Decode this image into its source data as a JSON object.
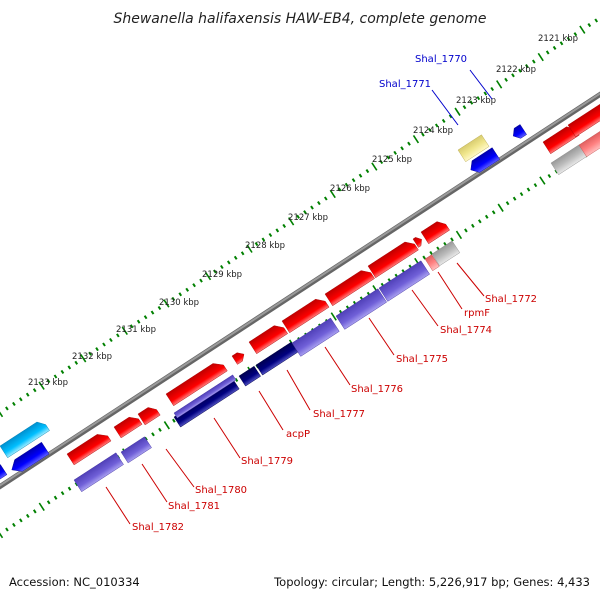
{
  "title": "Shewanella halifaxensis HAW-EB4, complete genome",
  "footer": {
    "accession": "Accession: NC_010334",
    "summary": "Topology: circular; Length: 5,226,917 bp; Genes: 4,433"
  },
  "colors": {
    "forward_gene": "#ff0000",
    "reverse_gene": "#6a5acd",
    "highlight_reverse": "#000080",
    "rna_or_other": "#f0e68c",
    "blue_gene": "#0000ff",
    "cyan_gene": "#00bfff",
    "grey_gene": "#aaaaaa",
    "backbone": "#808080",
    "tick_marks": "#008000",
    "label_forward": "#cc0000",
    "label_reverse": "#0000cc"
  },
  "ticks": [
    {
      "label": "2121 kbp"
    },
    {
      "label": "2122 kbp"
    },
    {
      "label": "2123 kbp"
    },
    {
      "label": "2124 kbp"
    },
    {
      "label": "2125 kbp"
    },
    {
      "label": "2126 kbp"
    },
    {
      "label": "2127 kbp"
    },
    {
      "label": "2128 kbp"
    },
    {
      "label": "2129 kbp"
    },
    {
      "label": "2130 kbp"
    },
    {
      "label": "2131 kbp"
    },
    {
      "label": "2132 kbp"
    },
    {
      "label": "2133 kbp"
    }
  ],
  "gene_labels": [
    {
      "label": "Shal_1770",
      "strand": "reverse"
    },
    {
      "label": "Shal_1771",
      "strand": "reverse"
    },
    {
      "label": "Shal_1772",
      "strand": "forward"
    },
    {
      "label": "rpmF",
      "strand": "forward"
    },
    {
      "label": "Shal_1774",
      "strand": "forward"
    },
    {
      "label": "Shal_1775",
      "strand": "forward"
    },
    {
      "label": "Shal_1776",
      "strand": "forward"
    },
    {
      "label": "Shal_1777",
      "strand": "forward"
    },
    {
      "label": "acpP",
      "strand": "forward"
    },
    {
      "label": "Shal_1779",
      "strand": "forward"
    },
    {
      "label": "Shal_1780",
      "strand": "forward"
    },
    {
      "label": "Shal_1781",
      "strand": "forward"
    },
    {
      "label": "Shal_1782",
      "strand": "forward"
    }
  ]
}
